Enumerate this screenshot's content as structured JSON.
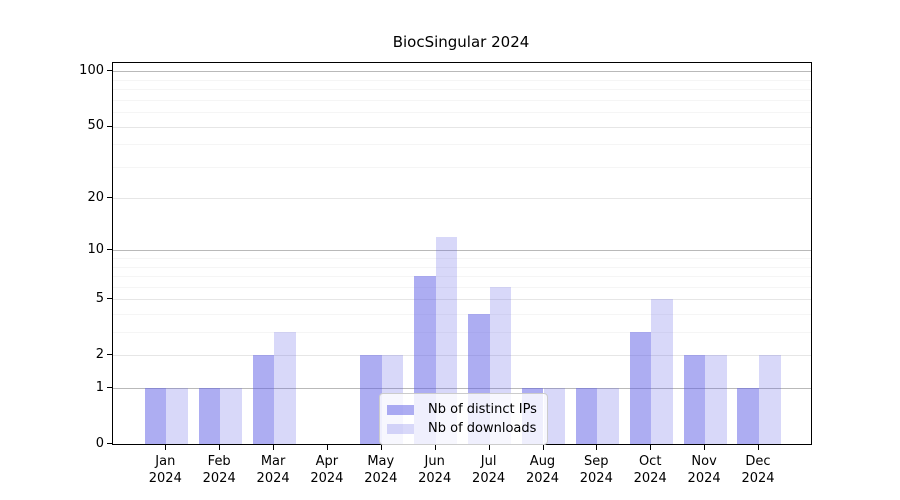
{
  "title": "BiocSingular 2024",
  "colors": {
    "ips_bar": "rgba(91,91,230,0.5)",
    "downloads_bar": "rgba(91,91,230,0.24)",
    "grid_decade": "#b9b9b9",
    "grid_major": "#e6e6e6",
    "grid_minor": "#f5f5f5",
    "axis": "#000000",
    "legend_border": "#cccccc"
  },
  "legend": {
    "items": [
      {
        "label": "Nb of distinct IPs",
        "color_key": "ips_bar"
      },
      {
        "label": "Nb of downloads",
        "color_key": "downloads_bar"
      }
    ]
  },
  "chart_data": {
    "type": "bar",
    "title": "BiocSingular 2024",
    "categories": [
      "Jan 2024",
      "Feb 2024",
      "Mar 2024",
      "Apr 2024",
      "May 2024",
      "Jun 2024",
      "Jul 2024",
      "Aug 2024",
      "Sep 2024",
      "Oct 2024",
      "Nov 2024",
      "Dec 2024"
    ],
    "series": [
      {
        "name": "Nb of distinct IPs",
        "values": [
          1,
          1,
          2,
          0,
          2,
          7,
          4,
          1,
          1,
          3,
          2,
          1
        ]
      },
      {
        "name": "Nb of downloads",
        "values": [
          1,
          1,
          3,
          0,
          2,
          12,
          6,
          1,
          1,
          5,
          2,
          2
        ]
      }
    ],
    "xlabel": "",
    "ylabel": "",
    "yscale": "log1p",
    "ylim": [
      0,
      111
    ],
    "yticks": [
      0,
      1,
      2,
      5,
      10,
      20,
      50,
      100
    ],
    "decade_yticks": [
      1,
      10,
      100
    ],
    "minor_yticks": [
      3,
      4,
      6,
      7,
      8,
      9,
      30,
      40,
      60,
      70,
      80,
      90
    ],
    "grid": true,
    "legend_position": "lower center inside"
  }
}
